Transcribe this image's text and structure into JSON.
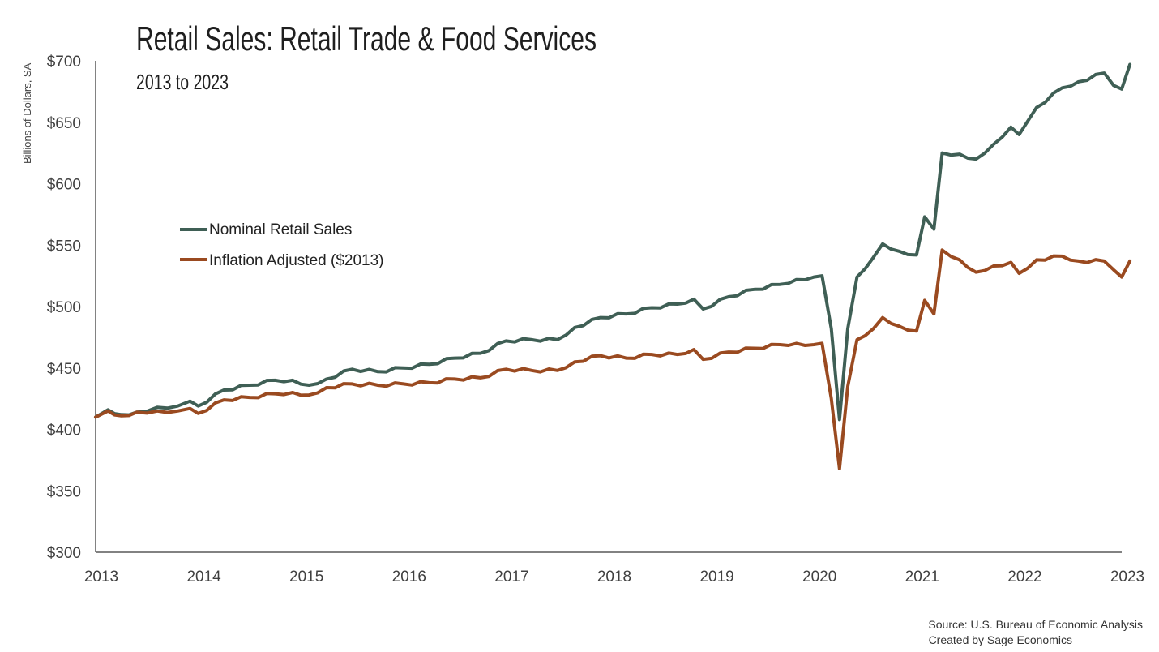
{
  "chart_data": {
    "type": "line",
    "title": "Retail Sales: Retail Trade & Food Services",
    "subtitle": "2013 to 2023",
    "xlabel": "",
    "ylabel": "Billions of Dollars, SA",
    "ylim": [
      300,
      700
    ],
    "xlim": [
      2013,
      2023
    ],
    "y_ticks": [
      "$300",
      "$350",
      "$400",
      "$450",
      "$500",
      "$550",
      "$600",
      "$650",
      "$700"
    ],
    "y_tick_values": [
      300,
      350,
      400,
      450,
      500,
      550,
      600,
      650,
      700
    ],
    "x_ticks": [
      "2013",
      "2014",
      "2015",
      "2016",
      "2017",
      "2018",
      "2019",
      "2020",
      "2021",
      "2022",
      "2023"
    ],
    "x_tick_values": [
      2013,
      2014,
      2015,
      2016,
      2017,
      2018,
      2019,
      2020,
      2021,
      2022,
      2023
    ],
    "grid": false,
    "legend_position": "center-left",
    "series": [
      {
        "name": "Nominal Retail Sales",
        "color": "#3f5f55",
        "anchors": [
          [
            2013.0,
            410
          ],
          [
            2013.12,
            416
          ],
          [
            2013.25,
            412
          ],
          [
            2013.4,
            414
          ],
          [
            2013.6,
            418
          ],
          [
            2013.8,
            419
          ],
          [
            2013.92,
            423
          ],
          [
            2014.0,
            419
          ],
          [
            2014.25,
            432
          ],
          [
            2014.5,
            436
          ],
          [
            2014.75,
            440
          ],
          [
            2014.92,
            440
          ],
          [
            2015.08,
            436
          ],
          [
            2015.25,
            441
          ],
          [
            2015.5,
            449
          ],
          [
            2015.75,
            447
          ],
          [
            2016.0,
            450
          ],
          [
            2016.25,
            453
          ],
          [
            2016.5,
            458
          ],
          [
            2016.75,
            462
          ],
          [
            2017.0,
            472
          ],
          [
            2017.25,
            473
          ],
          [
            2017.5,
            473
          ],
          [
            2017.67,
            483
          ],
          [
            2017.92,
            491
          ],
          [
            2018.17,
            494
          ],
          [
            2018.42,
            499
          ],
          [
            2018.67,
            502
          ],
          [
            2018.83,
            506
          ],
          [
            2018.92,
            498
          ],
          [
            2019.17,
            508
          ],
          [
            2019.42,
            514
          ],
          [
            2019.67,
            518
          ],
          [
            2019.83,
            522
          ],
          [
            2020.0,
            524
          ],
          [
            2020.08,
            525
          ],
          [
            2020.17,
            482
          ],
          [
            2020.25,
            408
          ],
          [
            2020.33,
            482
          ],
          [
            2020.42,
            524
          ],
          [
            2020.58,
            540
          ],
          [
            2020.67,
            551
          ],
          [
            2020.83,
            545
          ],
          [
            2021.0,
            542
          ],
          [
            2021.08,
            573
          ],
          [
            2021.17,
            563
          ],
          [
            2021.25,
            625
          ],
          [
            2021.42,
            624
          ],
          [
            2021.58,
            620
          ],
          [
            2021.75,
            632
          ],
          [
            2021.92,
            646
          ],
          [
            2022.0,
            640
          ],
          [
            2022.17,
            662
          ],
          [
            2022.42,
            678
          ],
          [
            2022.58,
            683
          ],
          [
            2022.83,
            690
          ],
          [
            2022.92,
            680
          ],
          [
            2023.0,
            677
          ],
          [
            2023.08,
            697
          ]
        ]
      },
      {
        "name": "Inflation Adjusted ($2013)",
        "color": "#9a4a20",
        "anchors": [
          [
            2013.0,
            410
          ],
          [
            2013.12,
            415
          ],
          [
            2013.25,
            411
          ],
          [
            2013.4,
            414
          ],
          [
            2013.6,
            415
          ],
          [
            2013.8,
            415
          ],
          [
            2013.92,
            417
          ],
          [
            2014.0,
            413
          ],
          [
            2014.25,
            424
          ],
          [
            2014.5,
            426
          ],
          [
            2014.75,
            429
          ],
          [
            2014.92,
            430
          ],
          [
            2015.08,
            428
          ],
          [
            2015.25,
            434
          ],
          [
            2015.5,
            437
          ],
          [
            2015.75,
            436
          ],
          [
            2016.0,
            437
          ],
          [
            2016.25,
            438
          ],
          [
            2016.5,
            441
          ],
          [
            2016.75,
            442
          ],
          [
            2017.0,
            449
          ],
          [
            2017.25,
            448
          ],
          [
            2017.5,
            448
          ],
          [
            2017.67,
            455
          ],
          [
            2017.92,
            460
          ],
          [
            2018.17,
            458
          ],
          [
            2018.42,
            461
          ],
          [
            2018.67,
            461
          ],
          [
            2018.83,
            465
          ],
          [
            2018.92,
            457
          ],
          [
            2019.17,
            463
          ],
          [
            2019.42,
            466
          ],
          [
            2019.67,
            469
          ],
          [
            2019.83,
            470
          ],
          [
            2020.0,
            469
          ],
          [
            2020.08,
            470
          ],
          [
            2020.17,
            425
          ],
          [
            2020.25,
            368
          ],
          [
            2020.33,
            435
          ],
          [
            2020.42,
            473
          ],
          [
            2020.58,
            482
          ],
          [
            2020.67,
            491
          ],
          [
            2020.83,
            484
          ],
          [
            2021.0,
            480
          ],
          [
            2021.08,
            505
          ],
          [
            2021.17,
            494
          ],
          [
            2021.25,
            546
          ],
          [
            2021.42,
            538
          ],
          [
            2021.58,
            528
          ],
          [
            2021.75,
            533
          ],
          [
            2021.92,
            536
          ],
          [
            2022.0,
            527
          ],
          [
            2022.17,
            538
          ],
          [
            2022.42,
            541
          ],
          [
            2022.58,
            537
          ],
          [
            2022.83,
            537
          ],
          [
            2022.92,
            530
          ],
          [
            2023.0,
            524
          ],
          [
            2023.08,
            537
          ]
        ]
      }
    ],
    "source_lines": [
      "Source: U.S. Bureau of Economic Analysis",
      "Created by Sage Economics"
    ]
  }
}
